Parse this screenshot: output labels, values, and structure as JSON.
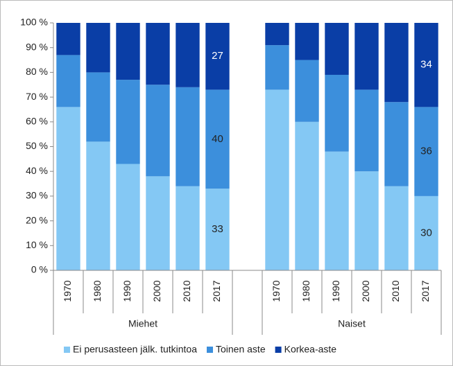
{
  "chart_data": {
    "type": "stacked_bar_100",
    "categories": [
      "1970",
      "1980",
      "1990",
      "2000",
      "2010",
      "2017",
      null,
      "1970",
      "1980",
      "1990",
      "2000",
      "2010",
      "2017"
    ],
    "group_labels": [
      "Miehet",
      "Naiset"
    ],
    "series": [
      {
        "name": "Ei perusasteen jälk. tutkintoa",
        "color": "#84c8f4",
        "label_color": "#222",
        "values": [
          66,
          52,
          43,
          38,
          34,
          33,
          null,
          73,
          60,
          48,
          40,
          34,
          30
        ],
        "value_labels": [
          null,
          null,
          null,
          null,
          null,
          "33",
          null,
          null,
          null,
          null,
          null,
          null,
          "30"
        ]
      },
      {
        "name": "Toinen aste",
        "color": "#3c8fdc",
        "label_color": "#222",
        "values": [
          21,
          28,
          34,
          37,
          40,
          40,
          null,
          18,
          25,
          31,
          33,
          34,
          36
        ],
        "value_labels": [
          null,
          null,
          null,
          null,
          null,
          "40",
          null,
          null,
          null,
          null,
          null,
          null,
          "36"
        ]
      },
      {
        "name": "Korkea-aste",
        "color": "#0a3ea6",
        "label_color": "#fff",
        "values": [
          13,
          20,
          23,
          25,
          26,
          27,
          null,
          9,
          15,
          21,
          27,
          32,
          34
        ],
        "value_labels": [
          null,
          null,
          null,
          null,
          null,
          "27",
          null,
          null,
          null,
          null,
          null,
          null,
          "34"
        ]
      }
    ],
    "ylim": [
      0,
      100
    ],
    "yticks": [
      {
        "value": 0,
        "label": "0 %"
      },
      {
        "value": 10,
        "label": "10 %"
      },
      {
        "value": 20,
        "label": "20 %"
      },
      {
        "value": 30,
        "label": "30 %"
      },
      {
        "value": 40,
        "label": "40 %"
      },
      {
        "value": 50,
        "label": "50 %"
      },
      {
        "value": 60,
        "label": "60 %"
      },
      {
        "value": 70,
        "label": "70 %"
      },
      {
        "value": 80,
        "label": "80 %"
      },
      {
        "value": 90,
        "label": "90 %"
      },
      {
        "value": 100,
        "label": "100 %"
      }
    ],
    "legend": "bottom"
  }
}
